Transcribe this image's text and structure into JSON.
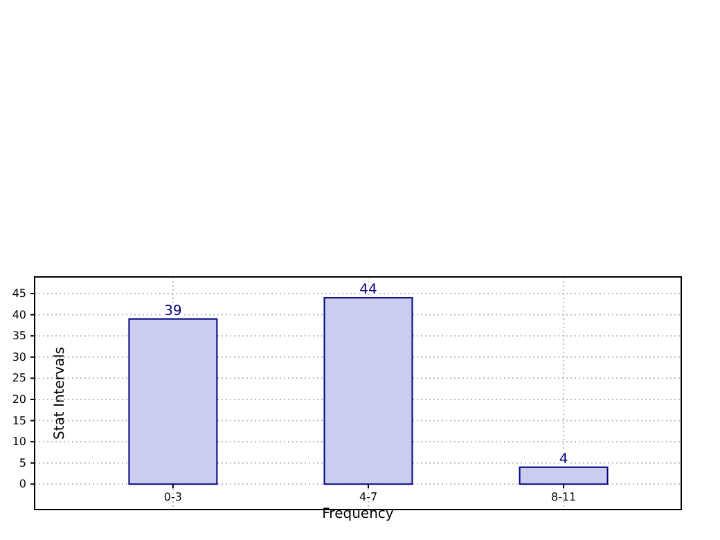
{
  "chart_data": {
    "type": "bar",
    "xlabel": "Frequency",
    "ylabel": "Stat Intervals",
    "categories": [
      "0-3",
      "4-7",
      "8-11"
    ],
    "values": [
      39,
      44,
      4
    ],
    "color": "#ccccee",
    "data_labels": true,
    "ylim": [
      -6,
      45
    ],
    "yticks": [
      0,
      5,
      10,
      15,
      20,
      25,
      30,
      35,
      40,
      45
    ],
    "grid": true
  }
}
